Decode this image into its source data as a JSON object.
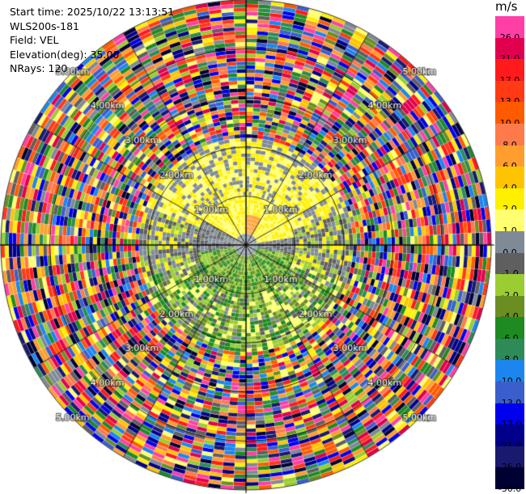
{
  "info": {
    "start_time": "Start time: 2025/10/22 13:13:51",
    "instrument": "WLS200s-181",
    "field": "Field: VEL",
    "elevation": "Elevation(deg): 35.00",
    "nrays": "NRays: 120"
  },
  "colorbar": {
    "unit": "m/s",
    "levels": [
      {
        "label": "26.0",
        "color": "#ff3fa5"
      },
      {
        "label": "21.0",
        "color": "#e0004f"
      },
      {
        "label": "17.0",
        "color": "#ff1b1b"
      },
      {
        "label": "13.0",
        "color": "#ff3a14"
      },
      {
        "label": "10.0",
        "color": "#ff5a00"
      },
      {
        "label": "8.0",
        "color": "#ff7a4a"
      },
      {
        "label": "6.0",
        "color": "#ff9e2e"
      },
      {
        "label": "4.0",
        "color": "#ffc400"
      },
      {
        "label": "2.0",
        "color": "#fff000"
      },
      {
        "label": "1.0",
        "color": "#ffff70"
      },
      {
        "label": "0.0",
        "color": "#7f8a96"
      },
      {
        "label": "-1.0",
        "color": "#5f5f5f"
      },
      {
        "label": "-2.0",
        "color": "#9acd32"
      },
      {
        "label": "-4.0",
        "color": "#6b8e23"
      },
      {
        "label": "-6.0",
        "color": "#1e8b22"
      },
      {
        "label": "-8.0",
        "color": "#2e8b57"
      },
      {
        "label": "-10.0",
        "color": "#1c86ee"
      },
      {
        "label": "-13.0",
        "color": "#3a5fcd"
      },
      {
        "label": "-17.0",
        "color": "#0000ee"
      },
      {
        "label": "-21.0",
        "color": "#00008b"
      },
      {
        "label": "-26.0",
        "color": "#191970"
      },
      {
        "label": "-30.0",
        "color": "#000033"
      }
    ]
  },
  "chart_data": {
    "type": "heatmap",
    "projection": "polar (PPI)",
    "field": "VEL",
    "elevation_deg": 35.0,
    "nrays": 120,
    "max_range_km": 5.0,
    "range_rings_km": [
      1.0,
      2.0,
      3.0,
      4.0,
      5.0
    ],
    "ring_labels": [
      "1.00km",
      "2.00km",
      "3.00km",
      "4.00km",
      "5.00km"
    ],
    "spoke_interval_deg": 30,
    "pattern": {
      "inner_warm_sector_deg": [
        -60,
        80
      ],
      "inner_cool_sector_deg": [
        100,
        260
      ],
      "noise_beyond_km": 2.2
    }
  }
}
